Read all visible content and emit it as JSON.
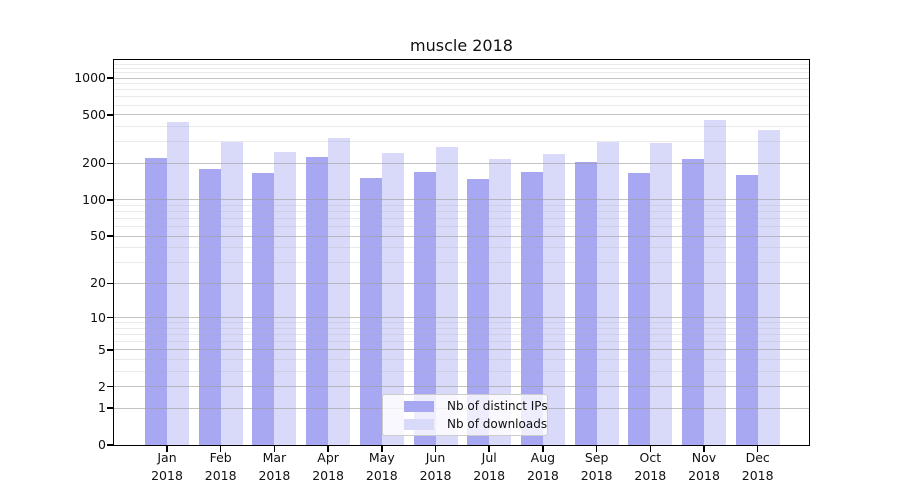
{
  "chart_data": {
    "type": "bar",
    "title": "muscle 2018",
    "x_year": "2018",
    "categories": [
      "Jan",
      "Feb",
      "Mar",
      "Apr",
      "May",
      "Jun",
      "Jul",
      "Aug",
      "Sep",
      "Oct",
      "Nov",
      "Dec"
    ],
    "series": [
      {
        "name": "Nb of distinct IPs",
        "color": "#a7a7f2",
        "values": [
          220,
          180,
          165,
          226,
          152,
          170,
          150,
          170,
          205,
          167,
          215,
          161
        ]
      },
      {
        "name": "Nb of downloads",
        "color": "#d9d9f9",
        "values": [
          435,
          300,
          248,
          322,
          243,
          272,
          218,
          240,
          300,
          294,
          453,
          376
        ]
      }
    ],
    "yscale": "log1p",
    "ylim": [
      0,
      1400
    ],
    "y_ticks": [
      0,
      1,
      2,
      5,
      10,
      20,
      50,
      100,
      200,
      500,
      1000
    ],
    "y_minor_gridlines": [
      3,
      4,
      6,
      7,
      8,
      9,
      30,
      40,
      60,
      70,
      80,
      90,
      300,
      400,
      600,
      700,
      800,
      900,
      1100,
      1200,
      1300
    ],
    "grid": true,
    "legend_position": "lower-center"
  }
}
